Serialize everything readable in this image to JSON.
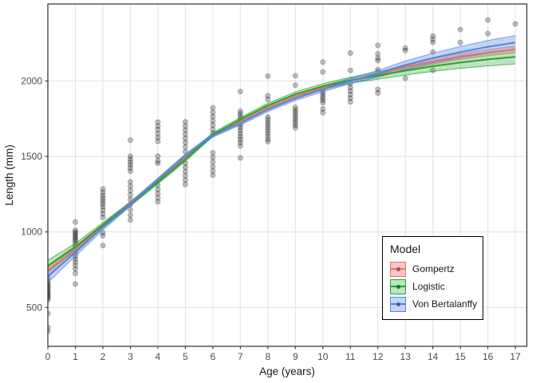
{
  "chart_data": {
    "type": "scatter",
    "title": "",
    "xlabel": "Age (years)",
    "ylabel": "Length (mm)",
    "x_ticks": [
      0,
      1,
      2,
      3,
      4,
      5,
      6,
      7,
      8,
      9,
      10,
      11,
      12,
      13,
      14,
      15,
      16,
      17
    ],
    "y_ticks": [
      500,
      1000,
      1500,
      2000
    ],
    "xlim": [
      0,
      17.4
    ],
    "ylim": [
      240,
      2510
    ],
    "grid": "major-only",
    "legend": {
      "title": "Model",
      "position": "inside-bottom-right"
    },
    "points": [
      {
        "age": 0,
        "lengths": [
          700,
          685,
          670,
          658,
          646,
          635,
          624,
          613,
          602,
          592,
          582,
          572,
          561,
          550,
          460,
          368,
          342
        ]
      },
      {
        "age": 1,
        "lengths": [
          1065,
          1012,
          1000,
          988,
          976,
          964,
          952,
          940,
          925,
          910,
          893,
          875,
          858,
          840,
          820,
          800,
          778,
          755,
          725,
          655
        ]
      },
      {
        "age": 2,
        "lengths": [
          1285,
          1262,
          1241,
          1222,
          1204,
          1186,
          1166,
          1144,
          1120,
          1096,
          995,
          975,
          910
        ]
      },
      {
        "age": 3,
        "lengths": [
          1608,
          1502,
          1482,
          1463,
          1444,
          1424,
          1402,
          1332,
          1303,
          1274,
          1245,
          1215,
          1183,
          1148,
          1112,
          1080
        ]
      },
      {
        "age": 4,
        "lengths": [
          1728,
          1702,
          1678,
          1652,
          1625,
          1600,
          1502,
          1472,
          1455,
          1310,
          1282,
          1254,
          1226,
          1200
        ]
      },
      {
        "age": 5,
        "lengths": [
          1730,
          1702,
          1675,
          1648,
          1620,
          1592,
          1562,
          1532,
          1455,
          1428,
          1400,
          1372,
          1344,
          1315
        ]
      },
      {
        "age": 6,
        "lengths": [
          1822,
          1792,
          1764,
          1736,
          1708,
          1680,
          1654,
          1524,
          1494,
          1464,
          1434,
          1404,
          1376
        ]
      },
      {
        "age": 7,
        "lengths": [
          1930,
          1800,
          1782,
          1764,
          1746,
          1728,
          1710,
          1692,
          1672,
          1652,
          1632,
          1612,
          1592,
          1570,
          1490
        ]
      },
      {
        "age": 8,
        "lengths": [
          2032,
          1902,
          1878,
          1762,
          1744,
          1726,
          1708,
          1690,
          1672,
          1654,
          1635,
          1615,
          1598
        ]
      },
      {
        "age": 9,
        "lengths": [
          2035,
          1972,
          1825,
          1808,
          1792,
          1775,
          1758,
          1742,
          1725,
          1708,
          1690
        ]
      },
      {
        "age": 10,
        "lengths": [
          2125,
          2060,
          1940,
          1922,
          1905,
          1888,
          1872,
          1855,
          1815,
          1790
        ]
      },
      {
        "age": 11,
        "lengths": [
          2185,
          2070,
          1982,
          1958,
          1934,
          1910,
          1886,
          1862
        ]
      },
      {
        "age": 12,
        "lengths": [
          2236,
          2180,
          2152,
          2135,
          2076,
          2060,
          1944,
          1920
        ]
      },
      {
        "age": 13,
        "lengths": [
          2218,
          2202,
          2018
        ]
      },
      {
        "age": 14,
        "lengths": [
          2298,
          2276,
          2256,
          2192,
          2070
        ]
      },
      {
        "age": 15,
        "lengths": [
          2340,
          2255
        ]
      },
      {
        "age": 16,
        "lengths": [
          2404,
          2314
        ]
      },
      {
        "age": 17,
        "lengths": [
          2378
        ]
      }
    ],
    "series": [
      {
        "name": "Gompertz",
        "color": "#E8736C",
        "fill": "rgba(232,115,108,0.40)",
        "dot": "#A05048",
        "x": [
          0,
          1,
          2,
          3,
          4,
          5,
          6,
          7,
          8,
          9,
          10,
          11,
          12,
          13,
          14,
          15,
          16,
          17
        ],
        "values": [
          745,
          885,
          1040,
          1190,
          1340,
          1495,
          1642,
          1730,
          1822,
          1898,
          1955,
          2002,
          2042,
          2092,
          2130,
          2162,
          2188,
          2210
        ],
        "lo": [
          710,
          863,
          1025,
          1178,
          1329,
          1484,
          1631,
          1719,
          1810,
          1885,
          1941,
          1987,
          2026,
          2074,
          2111,
          2142,
          2167,
          2188
        ],
        "hi": [
          780,
          907,
          1055,
          1202,
          1351,
          1506,
          1653,
          1741,
          1834,
          1911,
          1969,
          2017,
          2058,
          2110,
          2149,
          2182,
          2209,
          2232
        ]
      },
      {
        "name": "Logistic",
        "color": "#27A32B",
        "fill": "rgba(80,185,90,0.38)",
        "dot": "#1B7A20",
        "x": [
          0,
          1,
          2,
          3,
          4,
          5,
          6,
          7,
          8,
          9,
          10,
          11,
          12,
          13,
          14,
          15,
          16,
          17
        ],
        "values": [
          775,
          900,
          1045,
          1185,
          1330,
          1480,
          1645,
          1745,
          1838,
          1912,
          1965,
          2005,
          2036,
          2068,
          2098,
          2122,
          2143,
          2160
        ],
        "lo": [
          737,
          876,
          1028,
          1172,
          1318,
          1468,
          1633,
          1732,
          1824,
          1897,
          1948,
          1985,
          2012,
          2039,
          2064,
          2084,
          2100,
          2113
        ],
        "hi": [
          813,
          924,
          1062,
          1198,
          1342,
          1492,
          1657,
          1758,
          1852,
          1927,
          1982,
          2025,
          2060,
          2097,
          2132,
          2160,
          2186,
          2207
        ]
      },
      {
        "name": "Von Bertalanffy",
        "color": "#5484DD",
        "fill": "rgba(122,160,235,0.45)",
        "dot": "#3A5FA8",
        "x": [
          0,
          1,
          2,
          3,
          4,
          5,
          6,
          7,
          8,
          9,
          10,
          11,
          12,
          13,
          14,
          15,
          16,
          17
        ],
        "values": [
          705,
          865,
          1030,
          1185,
          1345,
          1505,
          1640,
          1720,
          1810,
          1885,
          1945,
          2000,
          2048,
          2105,
          2152,
          2192,
          2226,
          2255
        ],
        "lo": [
          665,
          840,
          1012,
          1171,
          1333,
          1493,
          1628,
          1708,
          1797,
          1871,
          1929,
          1982,
          2026,
          2078,
          2120,
          2155,
          2184,
          2209
        ],
        "hi": [
          745,
          890,
          1048,
          1199,
          1357,
          1517,
          1652,
          1732,
          1823,
          1899,
          1961,
          2018,
          2070,
          2132,
          2184,
          2229,
          2268,
          2301
        ]
      }
    ],
    "style": {
      "grid_color": "#E3E3E3",
      "panel_border_color": "#2F2F2F",
      "tick_color": "#333333",
      "point_color": "#000000",
      "point_opacity": 0.25
    }
  }
}
